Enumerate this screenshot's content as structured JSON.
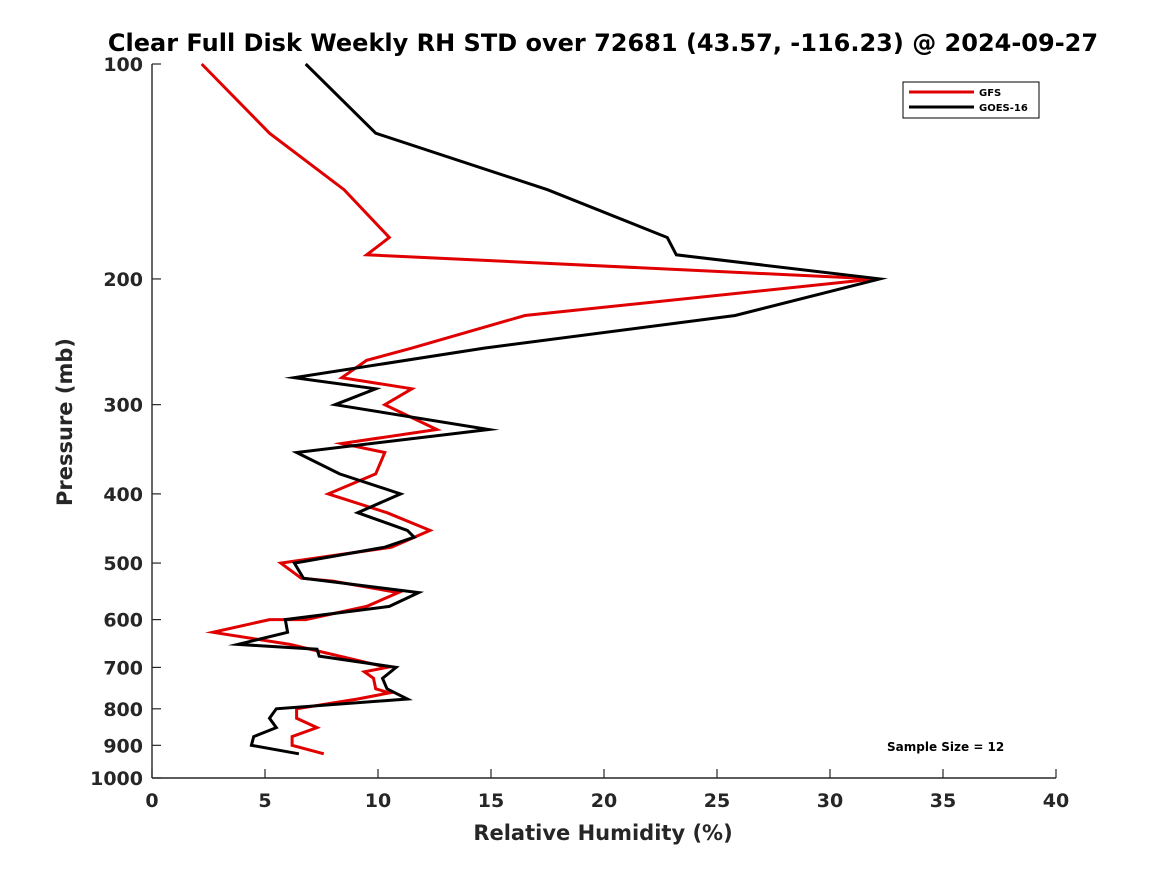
{
  "chart_data": {
    "type": "line",
    "title": "Clear Full Disk Weekly RH STD over 72681 (43.57, -116.23) @ 2024-09-27",
    "xlabel": "Relative Humidity (%)",
    "ylabel": "Pressure (mb)",
    "xlim": [
      0,
      40
    ],
    "ylim": [
      100,
      1000
    ],
    "yscale": "log",
    "y_reversed": true,
    "xticks": [
      0,
      5,
      10,
      15,
      20,
      25,
      30,
      35,
      40
    ],
    "yticks": [
      100,
      200,
      300,
      400,
      500,
      600,
      700,
      800,
      900,
      1000
    ],
    "grid": false,
    "legend_position": "top-right",
    "annotation": "Sample Size = 12",
    "series": [
      {
        "name": "GFS",
        "color": "#e00000",
        "points": [
          [
            2.2,
            100
          ],
          [
            5.2,
            125
          ],
          [
            8.5,
            150
          ],
          [
            10.5,
            175
          ],
          [
            9.5,
            185
          ],
          [
            32.0,
            200
          ],
          [
            16.5,
            225
          ],
          [
            11.5,
            250
          ],
          [
            9.5,
            260
          ],
          [
            8.4,
            275
          ],
          [
            11.5,
            285
          ],
          [
            10.3,
            300
          ],
          [
            12.6,
            325
          ],
          [
            8.4,
            340
          ],
          [
            10.3,
            350
          ],
          [
            9.9,
            375
          ],
          [
            7.8,
            400
          ],
          [
            10.4,
            425
          ],
          [
            12.3,
            450
          ],
          [
            10.6,
            475
          ],
          [
            5.7,
            500
          ],
          [
            6.6,
            525
          ],
          [
            8.0,
            530
          ],
          [
            10.9,
            550
          ],
          [
            9.5,
            575
          ],
          [
            6.8,
            600
          ],
          [
            5.2,
            600
          ],
          [
            2.7,
            625
          ],
          [
            6.1,
            650
          ],
          [
            10.4,
            700
          ],
          [
            9.4,
            710
          ],
          [
            9.8,
            725
          ],
          [
            9.9,
            750
          ],
          [
            10.5,
            760
          ],
          [
            9.1,
            775
          ],
          [
            6.4,
            800
          ],
          [
            6.4,
            825
          ],
          [
            7.3,
            850
          ],
          [
            6.2,
            875
          ],
          [
            6.2,
            900
          ],
          [
            7.6,
            925
          ]
        ]
      },
      {
        "name": "GOES-16",
        "color": "#000000",
        "points": [
          [
            6.8,
            100
          ],
          [
            9.9,
            125
          ],
          [
            17.5,
            150
          ],
          [
            22.8,
            175
          ],
          [
            23.2,
            185
          ],
          [
            32.2,
            200
          ],
          [
            25.8,
            225
          ],
          [
            14.7,
            250
          ],
          [
            6.3,
            275
          ],
          [
            9.9,
            285
          ],
          [
            8.1,
            300
          ],
          [
            14.9,
            325
          ],
          [
            6.4,
            350
          ],
          [
            8.3,
            375
          ],
          [
            11.0,
            400
          ],
          [
            9.1,
            425
          ],
          [
            11.3,
            450
          ],
          [
            11.6,
            460
          ],
          [
            10.3,
            475
          ],
          [
            6.3,
            500
          ],
          [
            6.7,
            525
          ],
          [
            11.8,
            550
          ],
          [
            10.5,
            575
          ],
          [
            5.9,
            600
          ],
          [
            6.0,
            625
          ],
          [
            3.8,
            650
          ],
          [
            7.3,
            660
          ],
          [
            7.4,
            675
          ],
          [
            10.8,
            700
          ],
          [
            10.2,
            725
          ],
          [
            10.4,
            750
          ],
          [
            11.3,
            775
          ],
          [
            5.5,
            800
          ],
          [
            5.2,
            825
          ],
          [
            5.5,
            850
          ],
          [
            4.5,
            875
          ],
          [
            4.4,
            900
          ],
          [
            6.5,
            925
          ]
        ]
      }
    ]
  }
}
